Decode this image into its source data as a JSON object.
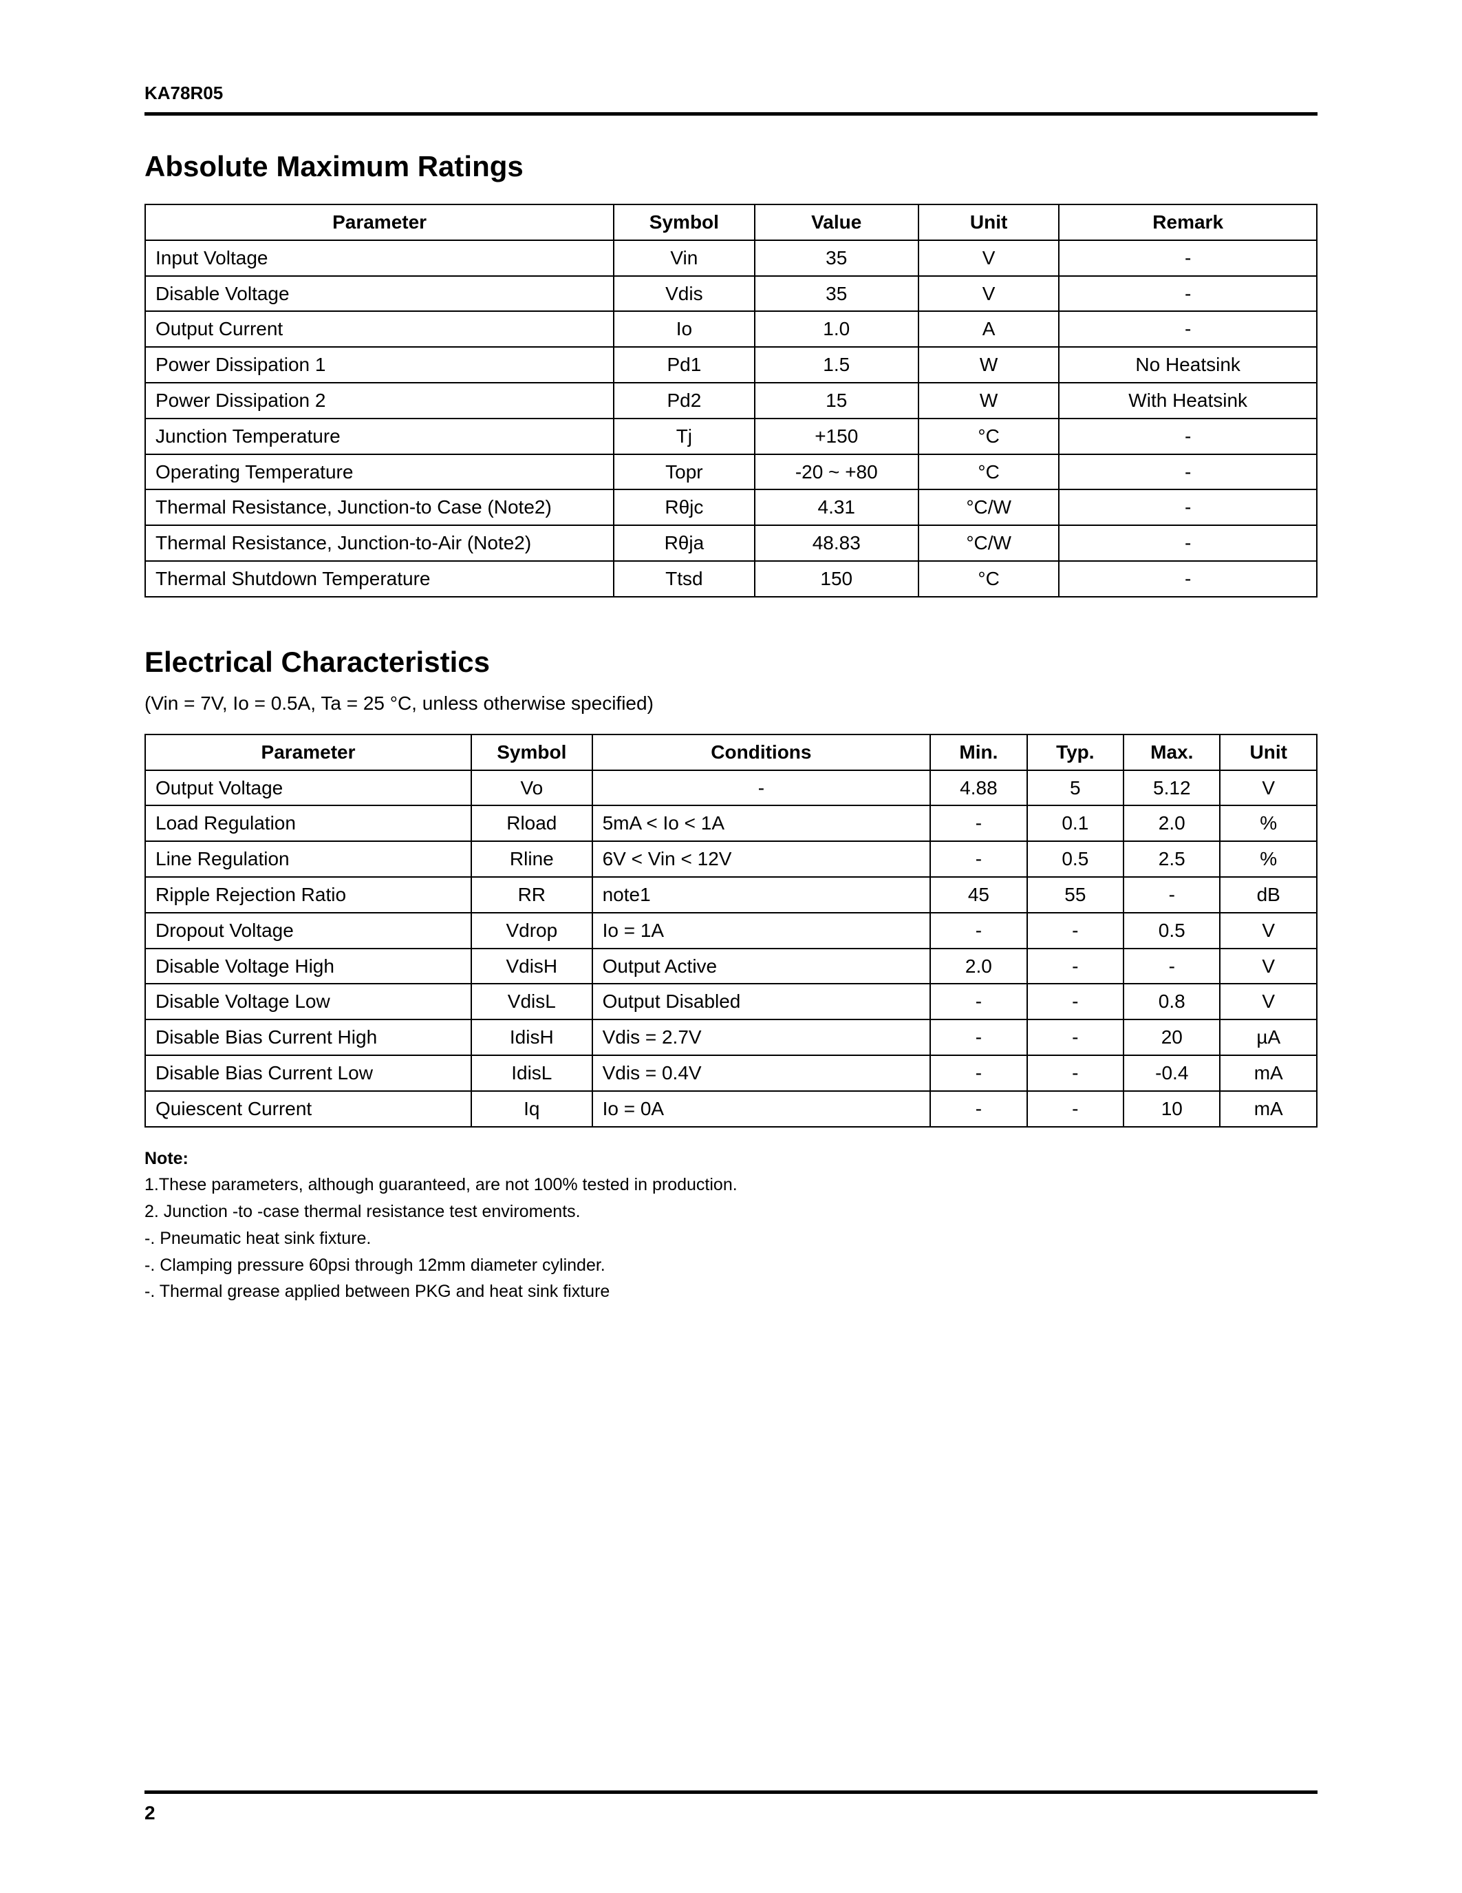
{
  "header": {
    "part_number": "KA78R05"
  },
  "section1": {
    "title": "Absolute Maximum Ratings",
    "columns": [
      "Parameter",
      "Symbol",
      "Value",
      "Unit",
      "Remark"
    ],
    "col_widths": [
      "40%",
      "12%",
      "14%",
      "12%",
      "22%"
    ],
    "rows": [
      {
        "parameter": "Input Voltage",
        "symbol": "Vin",
        "value": "35",
        "unit": "V",
        "remark": "-"
      },
      {
        "parameter": "Disable Voltage",
        "symbol": "Vdis",
        "value": "35",
        "unit": "V",
        "remark": "-"
      },
      {
        "parameter": "Output Current",
        "symbol": "Io",
        "value": "1.0",
        "unit": "A",
        "remark": "-"
      },
      {
        "parameter": "Power Dissipation 1",
        "symbol": "Pd1",
        "value": "1.5",
        "unit": "W",
        "remark": "No   Heatsink"
      },
      {
        "parameter": "Power Dissipation 2",
        "symbol": "Pd2",
        "value": "15",
        "unit": "W",
        "remark": "With Heatsink"
      },
      {
        "parameter": "Junction Temperature",
        "symbol": "Tj",
        "value": "+150",
        "unit": "°C",
        "remark": "-"
      },
      {
        "parameter": "Operating Temperature",
        "symbol": "Topr",
        "value": "-20 ~ +80",
        "unit": "°C",
        "remark": "-"
      },
      {
        "parameter": "Thermal Resistance, Junction-to Case (Note2)",
        "symbol": "Rθjc",
        "value": "4.31",
        "unit": "°C/W",
        "remark": "-"
      },
      {
        "parameter": "Thermal Resistance, Junction-to-Air (Note2)",
        "symbol": "Rθja",
        "value": "48.83",
        "unit": "°C/W",
        "remark": "-"
      },
      {
        "parameter": "Thermal Shutdown Temperature",
        "symbol": "Ttsd",
        "value": "150",
        "unit": "°C",
        "remark": "-"
      }
    ]
  },
  "section2": {
    "title": "Electrical Characteristics",
    "subnote": "(Vin = 7V, Io = 0.5A, Ta = 25 °C, unless  otherwise specified)",
    "columns": [
      "Parameter",
      "Symbol",
      "Conditions",
      "Min.",
      "Typ.",
      "Max.",
      "Unit"
    ],
    "col_widths": [
      "27%",
      "10%",
      "28%",
      "8%",
      "8%",
      "8%",
      "8%"
    ],
    "rows": [
      {
        "parameter": "Output Voltage",
        "symbol": "Vo",
        "conditions": "-",
        "conditions_align": "center",
        "min": "4.88",
        "typ": "5",
        "max": "5.12",
        "unit": "V"
      },
      {
        "parameter": "Load Regulation",
        "symbol": "Rload",
        "conditions": "5mA < Io < 1A",
        "conditions_align": "left",
        "min": "-",
        "typ": "0.1",
        "max": "2.0",
        "unit": "%"
      },
      {
        "parameter": "Line Regulation",
        "symbol": "Rline",
        "conditions": "6V < Vin < 12V",
        "conditions_align": "left",
        "min": "-",
        "typ": "0.5",
        "max": "2.5",
        "unit": "%"
      },
      {
        "parameter": "Ripple Rejection Ratio",
        "symbol": "RR",
        "conditions": "note1",
        "conditions_align": "left",
        "min": "45",
        "typ": "55",
        "max": "-",
        "unit": "dB"
      },
      {
        "parameter": "Dropout Voltage",
        "symbol": "Vdrop",
        "conditions": "Io = 1A",
        "conditions_align": "left",
        "min": "-",
        "typ": "-",
        "max": "0.5",
        "unit": "V"
      },
      {
        "parameter": "Disable Voltage High",
        "symbol": "VdisH",
        "conditions": "Output Active",
        "conditions_align": "left",
        "min": "2.0",
        "typ": "-",
        "max": "-",
        "unit": "V"
      },
      {
        "parameter": "Disable Voltage Low",
        "symbol": "VdisL",
        "conditions": "Output Disabled",
        "conditions_align": "left",
        "min": "-",
        "typ": "-",
        "max": "0.8",
        "unit": "V"
      },
      {
        "parameter": "Disable Bias Current High",
        "symbol": "IdisH",
        "conditions": "Vdis = 2.7V",
        "conditions_align": "left",
        "min": "-",
        "typ": "-",
        "max": "20",
        "unit": "µA"
      },
      {
        "parameter": "Disable Bias Current Low",
        "symbol": "IdisL",
        "conditions": "Vdis = 0.4V",
        "conditions_align": "left",
        "min": "-",
        "typ": "-",
        "max": "-0.4",
        "unit": "mA"
      },
      {
        "parameter": "Quiescent Current",
        "symbol": "Iq",
        "conditions": "Io = 0A",
        "conditions_align": "left",
        "min": "-",
        "typ": "-",
        "max": "10",
        "unit": "mA"
      }
    ]
  },
  "notes": {
    "heading": "Note:",
    "lines": [
      "1.These parameters, although guaranteed, are not 100% tested in production.",
      "2. Junction -to -case thermal resistance test enviroments.",
      "-. Pneumatic heat sink fixture.",
      "-. Clamping pressure 60psi through 12mm diameter cylinder.",
      "-. Thermal grease applied between PKG and heat sink fixture"
    ]
  },
  "footer": {
    "page_number": "2"
  }
}
